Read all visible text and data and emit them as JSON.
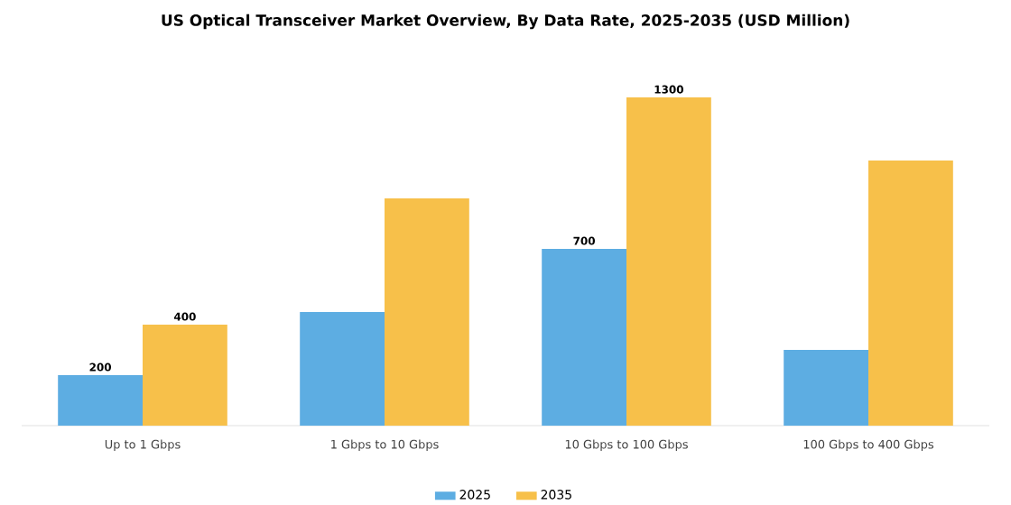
{
  "chart_data": {
    "type": "bar",
    "title": "US Optical Transceiver Market Overview, By Data Rate, 2025-2035 (USD Million)",
    "categories": [
      "Up to 1 Gbps",
      "1 Gbps to 10 Gbps",
      "10 Gbps to 100 Gbps",
      "100 Gbps to 400 Gbps"
    ],
    "series": [
      {
        "name": "2025",
        "color": "#5dade2",
        "values": [
          200,
          450,
          700,
          300
        ],
        "value_labels": [
          "200",
          null,
          "700",
          null
        ]
      },
      {
        "name": "2035",
        "color": "#f7c04a",
        "values": [
          400,
          900,
          1300,
          1050
        ],
        "value_labels": [
          "400",
          null,
          "1300",
          null
        ]
      }
    ],
    "legend": "bottom"
  }
}
